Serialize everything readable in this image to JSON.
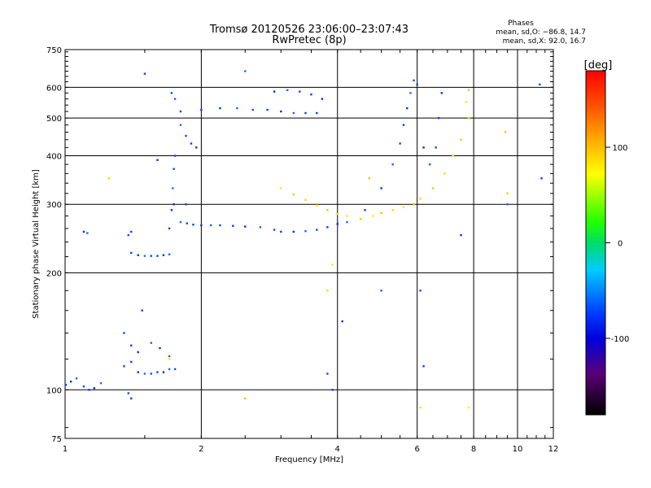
{
  "chart_data": {
    "type": "scatter",
    "title": "Tromsø 20120526 23:06:00–23:07:43",
    "subtitle": "RwPretec (8p)",
    "xlabel": "Frequency [MHz]",
    "ylabel": "Stationary phase Virtual Height [km]",
    "x_scale": "log",
    "y_scale": "log",
    "xlim": [
      1,
      12
    ],
    "ylim": [
      75,
      750
    ],
    "x_ticks": [
      1,
      2,
      4,
      6,
      8,
      10,
      12
    ],
    "y_ticks": [
      75,
      100,
      200,
      300,
      400,
      500,
      600,
      750
    ],
    "grid": true,
    "phases_box": {
      "title": "Phases",
      "line_o": "mean, sd,O: −86.8, 14.7",
      "line_x": "mean, sd,X:  92.0, 16.7"
    },
    "colorbar": {
      "label": "[deg]",
      "ticks": [
        100,
        0,
        -100
      ],
      "range": [
        -180,
        180
      ]
    },
    "series": [
      {
        "name": "low_layer",
        "phase": -100,
        "points": [
          [
            1.0,
            103
          ],
          [
            1.03,
            105
          ],
          [
            1.06,
            107
          ],
          [
            1.1,
            102
          ],
          [
            1.13,
            100
          ],
          [
            1.16,
            101
          ],
          [
            1.2,
            104
          ],
          [
            1.35,
            115
          ],
          [
            1.4,
            118
          ],
          [
            1.45,
            111
          ],
          [
            1.5,
            110
          ],
          [
            1.55,
            110
          ],
          [
            1.6,
            111
          ],
          [
            1.65,
            111
          ],
          [
            1.7,
            113
          ],
          [
            1.75,
            113
          ],
          [
            1.4,
            130
          ],
          [
            1.45,
            125
          ],
          [
            1.55,
            132
          ],
          [
            1.35,
            140
          ],
          [
            1.48,
            160
          ],
          [
            1.62,
            128
          ],
          [
            1.7,
            122
          ],
          [
            1.38,
            98
          ],
          [
            1.4,
            95
          ]
        ]
      },
      {
        "name": "E_layer",
        "phase": -100,
        "points": [
          [
            1.4,
            225
          ],
          [
            1.45,
            222
          ],
          [
            1.5,
            221
          ],
          [
            1.55,
            221
          ],
          [
            1.6,
            221
          ],
          [
            1.65,
            222
          ],
          [
            1.7,
            223
          ],
          [
            1.38,
            250
          ],
          [
            1.4,
            255
          ],
          [
            1.1,
            255
          ],
          [
            1.12,
            253
          ]
        ]
      },
      {
        "name": "F_cusp",
        "phase": -100,
        "points": [
          [
            1.7,
            260
          ],
          [
            1.72,
            290
          ],
          [
            1.73,
            330
          ],
          [
            1.74,
            370
          ],
          [
            1.75,
            400
          ],
          [
            1.74,
            300
          ],
          [
            1.8,
            270
          ],
          [
            1.86,
            268
          ],
          [
            1.92,
            266
          ],
          [
            2.0,
            265
          ],
          [
            2.1,
            265
          ],
          [
            2.2,
            265
          ],
          [
            2.35,
            264
          ],
          [
            2.5,
            263
          ],
          [
            2.7,
            262
          ],
          [
            2.9,
            258
          ],
          [
            1.85,
            300
          ]
        ]
      },
      {
        "name": "F_trace_blue",
        "phase": -100,
        "points": [
          [
            3.0,
            255
          ],
          [
            3.2,
            255
          ],
          [
            3.4,
            256
          ],
          [
            3.6,
            258
          ],
          [
            3.8,
            262
          ],
          [
            4.0,
            267
          ],
          [
            4.2,
            270
          ],
          [
            4.5,
            275
          ]
        ]
      },
      {
        "name": "F_trace_yellow",
        "phase": 95,
        "points": [
          [
            4.5,
            275
          ],
          [
            4.8,
            280
          ],
          [
            5.0,
            285
          ],
          [
            5.3,
            290
          ],
          [
            5.6,
            295
          ],
          [
            5.9,
            300
          ],
          [
            6.1,
            310
          ],
          [
            3.0,
            330
          ],
          [
            3.2,
            318
          ],
          [
            3.4,
            308
          ],
          [
            3.6,
            298
          ],
          [
            3.8,
            290
          ],
          [
            4.0,
            283
          ],
          [
            4.2,
            280
          ],
          [
            6.5,
            330
          ],
          [
            6.9,
            360
          ],
          [
            7.2,
            400
          ],
          [
            7.5,
            440
          ],
          [
            7.8,
            500
          ],
          [
            7.7,
            550
          ],
          [
            7.8,
            590
          ]
        ]
      },
      {
        "name": "X_branch_blue",
        "phase": -100,
        "points": [
          [
            4.6,
            290
          ],
          [
            5.0,
            330
          ],
          [
            5.3,
            380
          ],
          [
            5.5,
            430
          ],
          [
            5.6,
            480
          ],
          [
            5.7,
            530
          ],
          [
            5.8,
            580
          ],
          [
            5.9,
            625
          ],
          [
            6.0,
            610
          ],
          [
            6.2,
            420
          ],
          [
            6.4,
            380
          ],
          [
            6.6,
            420
          ],
          [
            6.7,
            500
          ],
          [
            6.8,
            580
          ]
        ]
      },
      {
        "name": "F2_upper",
        "phase": -100,
        "points": [
          [
            2.0,
            525
          ],
          [
            2.2,
            530
          ],
          [
            2.4,
            530
          ],
          [
            2.6,
            525
          ],
          [
            2.8,
            525
          ],
          [
            3.0,
            520
          ],
          [
            3.2,
            515
          ],
          [
            3.4,
            515
          ],
          [
            3.6,
            515
          ],
          [
            2.9,
            585
          ],
          [
            3.1,
            590
          ],
          [
            3.3,
            585
          ],
          [
            3.5,
            575
          ],
          [
            3.7,
            560
          ],
          [
            1.8,
            480
          ],
          [
            1.85,
            450
          ],
          [
            1.9,
            430
          ],
          [
            1.95,
            420
          ],
          [
            1.75,
            560
          ],
          [
            1.72,
            580
          ],
          [
            1.8,
            520
          ]
        ]
      },
      {
        "name": "scattered",
        "phase": -100,
        "points": [
          [
            1.5,
            650
          ],
          [
            1.6,
            390
          ],
          [
            2.5,
            660
          ],
          [
            3.8,
            110
          ],
          [
            3.9,
            100
          ],
          [
            4.1,
            150
          ],
          [
            5.0,
            180
          ],
          [
            6.1,
            180
          ],
          [
            6.2,
            115
          ],
          [
            7.5,
            250
          ],
          [
            9.5,
            300
          ],
          [
            11.2,
            610
          ],
          [
            11.3,
            350
          ]
        ]
      },
      {
        "name": "scattered_warm",
        "phase": 110,
        "points": [
          [
            1.25,
            350
          ],
          [
            1.7,
            120
          ],
          [
            2.5,
            95
          ],
          [
            3.8,
            180
          ],
          [
            3.9,
            210
          ],
          [
            4.7,
            350
          ],
          [
            6.1,
            90
          ],
          [
            7.8,
            90
          ],
          [
            9.4,
            460
          ],
          [
            9.5,
            320
          ]
        ]
      }
    ]
  }
}
